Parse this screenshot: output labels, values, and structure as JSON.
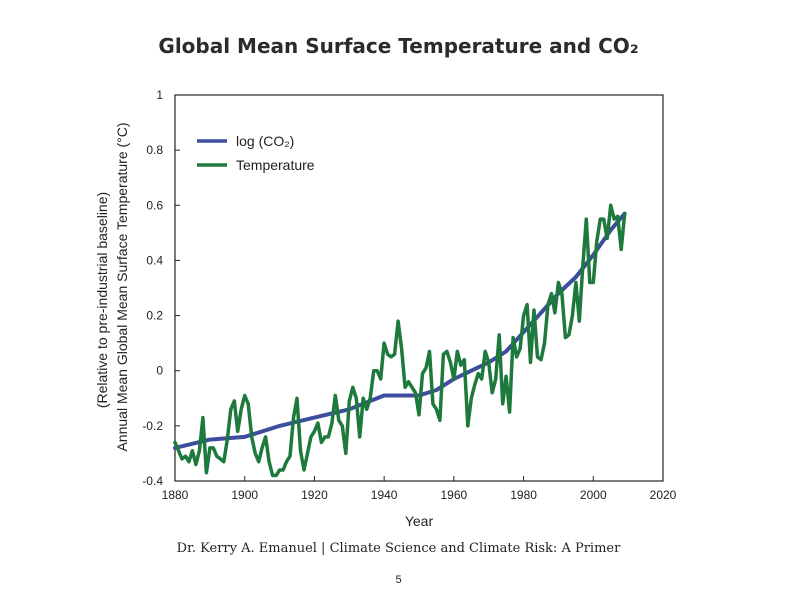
{
  "slide": {
    "title": "Global Mean Surface Temperature and CO₂",
    "credit": "Dr. Kerry A. Emanuel | Climate Science and Climate Risk: A Primer",
    "page_number": "5"
  },
  "chart_data": {
    "type": "line",
    "title": "",
    "xlabel": "Year",
    "ylabel": "Annual Mean Global Mean Surface Temperature (°C)",
    "ylabel2": "(Relative to pre-industrial baseline)",
    "xlim": [
      1880,
      2020
    ],
    "ylim": [
      -0.4,
      1.0
    ],
    "xticks": [
      "1880",
      "1900",
      "1920",
      "1940",
      "1960",
      "1980",
      "2000",
      "2020"
    ],
    "yticks": [
      "-0.4",
      "-0.2",
      "0",
      "0.2",
      "0.4",
      "0.6",
      "0.8",
      "1"
    ],
    "grid": false,
    "legend_position": "top-left",
    "series": [
      {
        "name": "log (CO₂)",
        "color": "#3d4e9e",
        "x": [
          1880,
          1890,
          1900,
          1910,
          1920,
          1930,
          1940,
          1950,
          1955,
          1960,
          1965,
          1970,
          1975,
          1980,
          1985,
          1990,
          1995,
          2000,
          2005,
          2009
        ],
        "y": [
          -0.28,
          -0.25,
          -0.24,
          -0.2,
          -0.17,
          -0.14,
          -0.09,
          -0.09,
          -0.07,
          -0.03,
          0.0,
          0.03,
          0.07,
          0.14,
          0.21,
          0.28,
          0.34,
          0.42,
          0.51,
          0.57
        ]
      },
      {
        "name": "Temperature",
        "color": "#1e7a3c",
        "x": [
          1880,
          1881,
          1882,
          1883,
          1884,
          1885,
          1886,
          1887,
          1888,
          1889,
          1890,
          1891,
          1892,
          1893,
          1894,
          1895,
          1896,
          1897,
          1898,
          1899,
          1900,
          1901,
          1902,
          1903,
          1904,
          1905,
          1906,
          1907,
          1908,
          1909,
          1910,
          1911,
          1912,
          1913,
          1914,
          1915,
          1916,
          1917,
          1918,
          1919,
          1920,
          1921,
          1922,
          1923,
          1924,
          1925,
          1926,
          1927,
          1928,
          1929,
          1930,
          1931,
          1932,
          1933,
          1934,
          1935,
          1936,
          1937,
          1938,
          1939,
          1940,
          1941,
          1942,
          1943,
          1944,
          1945,
          1946,
          1947,
          1948,
          1949,
          1950,
          1951,
          1952,
          1953,
          1954,
          1955,
          1956,
          1957,
          1958,
          1959,
          1960,
          1961,
          1962,
          1963,
          1964,
          1965,
          1966,
          1967,
          1968,
          1969,
          1970,
          1971,
          1972,
          1973,
          1974,
          1975,
          1976,
          1977,
          1978,
          1979,
          1980,
          1981,
          1982,
          1983,
          1984,
          1985,
          1986,
          1987,
          1988,
          1989,
          1990,
          1991,
          1992,
          1993,
          1994,
          1995,
          1996,
          1997,
          1998,
          1999,
          2000,
          2001,
          2002,
          2003,
          2004,
          2005,
          2006,
          2007,
          2008,
          2009
        ],
        "y": [
          -0.26,
          -0.29,
          -0.32,
          -0.31,
          -0.33,
          -0.29,
          -0.34,
          -0.29,
          -0.17,
          -0.37,
          -0.28,
          -0.28,
          -0.31,
          -0.32,
          -0.33,
          -0.25,
          -0.14,
          -0.11,
          -0.22,
          -0.14,
          -0.09,
          -0.12,
          -0.24,
          -0.3,
          -0.33,
          -0.28,
          -0.24,
          -0.33,
          -0.38,
          -0.38,
          -0.36,
          -0.36,
          -0.33,
          -0.31,
          -0.17,
          -0.1,
          -0.29,
          -0.36,
          -0.3,
          -0.24,
          -0.22,
          -0.19,
          -0.26,
          -0.24,
          -0.24,
          -0.19,
          -0.09,
          -0.18,
          -0.2,
          -0.3,
          -0.11,
          -0.06,
          -0.1,
          -0.24,
          -0.1,
          -0.14,
          -0.1,
          0.0,
          0.0,
          -0.03,
          0.1,
          0.06,
          0.05,
          0.06,
          0.18,
          0.08,
          -0.06,
          -0.04,
          -0.06,
          -0.08,
          -0.16,
          -0.01,
          0.01,
          0.07,
          -0.12,
          -0.14,
          -0.18,
          0.06,
          0.07,
          0.03,
          -0.03,
          0.07,
          0.02,
          0.04,
          -0.2,
          -0.1,
          -0.05,
          -0.01,
          -0.03,
          0.07,
          0.03,
          -0.08,
          -0.03,
          0.13,
          -0.12,
          -0.02,
          -0.15,
          0.12,
          0.05,
          0.08,
          0.2,
          0.24,
          0.03,
          0.22,
          0.05,
          0.04,
          0.1,
          0.24,
          0.28,
          0.21,
          0.32,
          0.28,
          0.12,
          0.13,
          0.2,
          0.32,
          0.18,
          0.38,
          0.55,
          0.32,
          0.32,
          0.47,
          0.55,
          0.55,
          0.48,
          0.6,
          0.55,
          0.56,
          0.44,
          0.57
        ]
      }
    ]
  }
}
